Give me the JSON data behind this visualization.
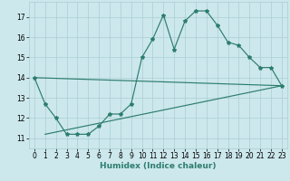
{
  "xlabel": "Humidex (Indice chaleur)",
  "bg_color": "#cce8ec",
  "line_color": "#2d7d6e",
  "grid_color": "#aacdd4",
  "xlim": [
    -0.5,
    23.5
  ],
  "ylim": [
    10.5,
    17.75
  ],
  "yticks": [
    11,
    12,
    13,
    14,
    15,
    16,
    17
  ],
  "xticks": [
    0,
    1,
    2,
    3,
    4,
    5,
    6,
    7,
    8,
    9,
    10,
    11,
    12,
    13,
    14,
    15,
    16,
    17,
    18,
    19,
    20,
    21,
    22,
    23
  ],
  "curve1_x": [
    0,
    1,
    2,
    3,
    4,
    5,
    6,
    7,
    8,
    9,
    10,
    11,
    12,
    13,
    14,
    15,
    16,
    17,
    18,
    19,
    20,
    21,
    22,
    23
  ],
  "curve1_y": [
    14.0,
    12.7,
    12.0,
    11.2,
    11.2,
    11.2,
    11.6,
    12.2,
    12.2,
    12.7,
    15.0,
    15.9,
    17.1,
    15.4,
    16.8,
    17.3,
    17.3,
    16.6,
    15.75,
    15.6,
    15.0,
    14.5,
    14.5,
    13.6
  ],
  "line2_x": [
    1,
    23
  ],
  "line2_y": [
    11.2,
    13.6
  ],
  "line3_x": [
    0,
    23
  ],
  "line3_y": [
    14.0,
    13.6
  ],
  "tick_fontsize": 5.5,
  "xlabel_fontsize": 6.5
}
